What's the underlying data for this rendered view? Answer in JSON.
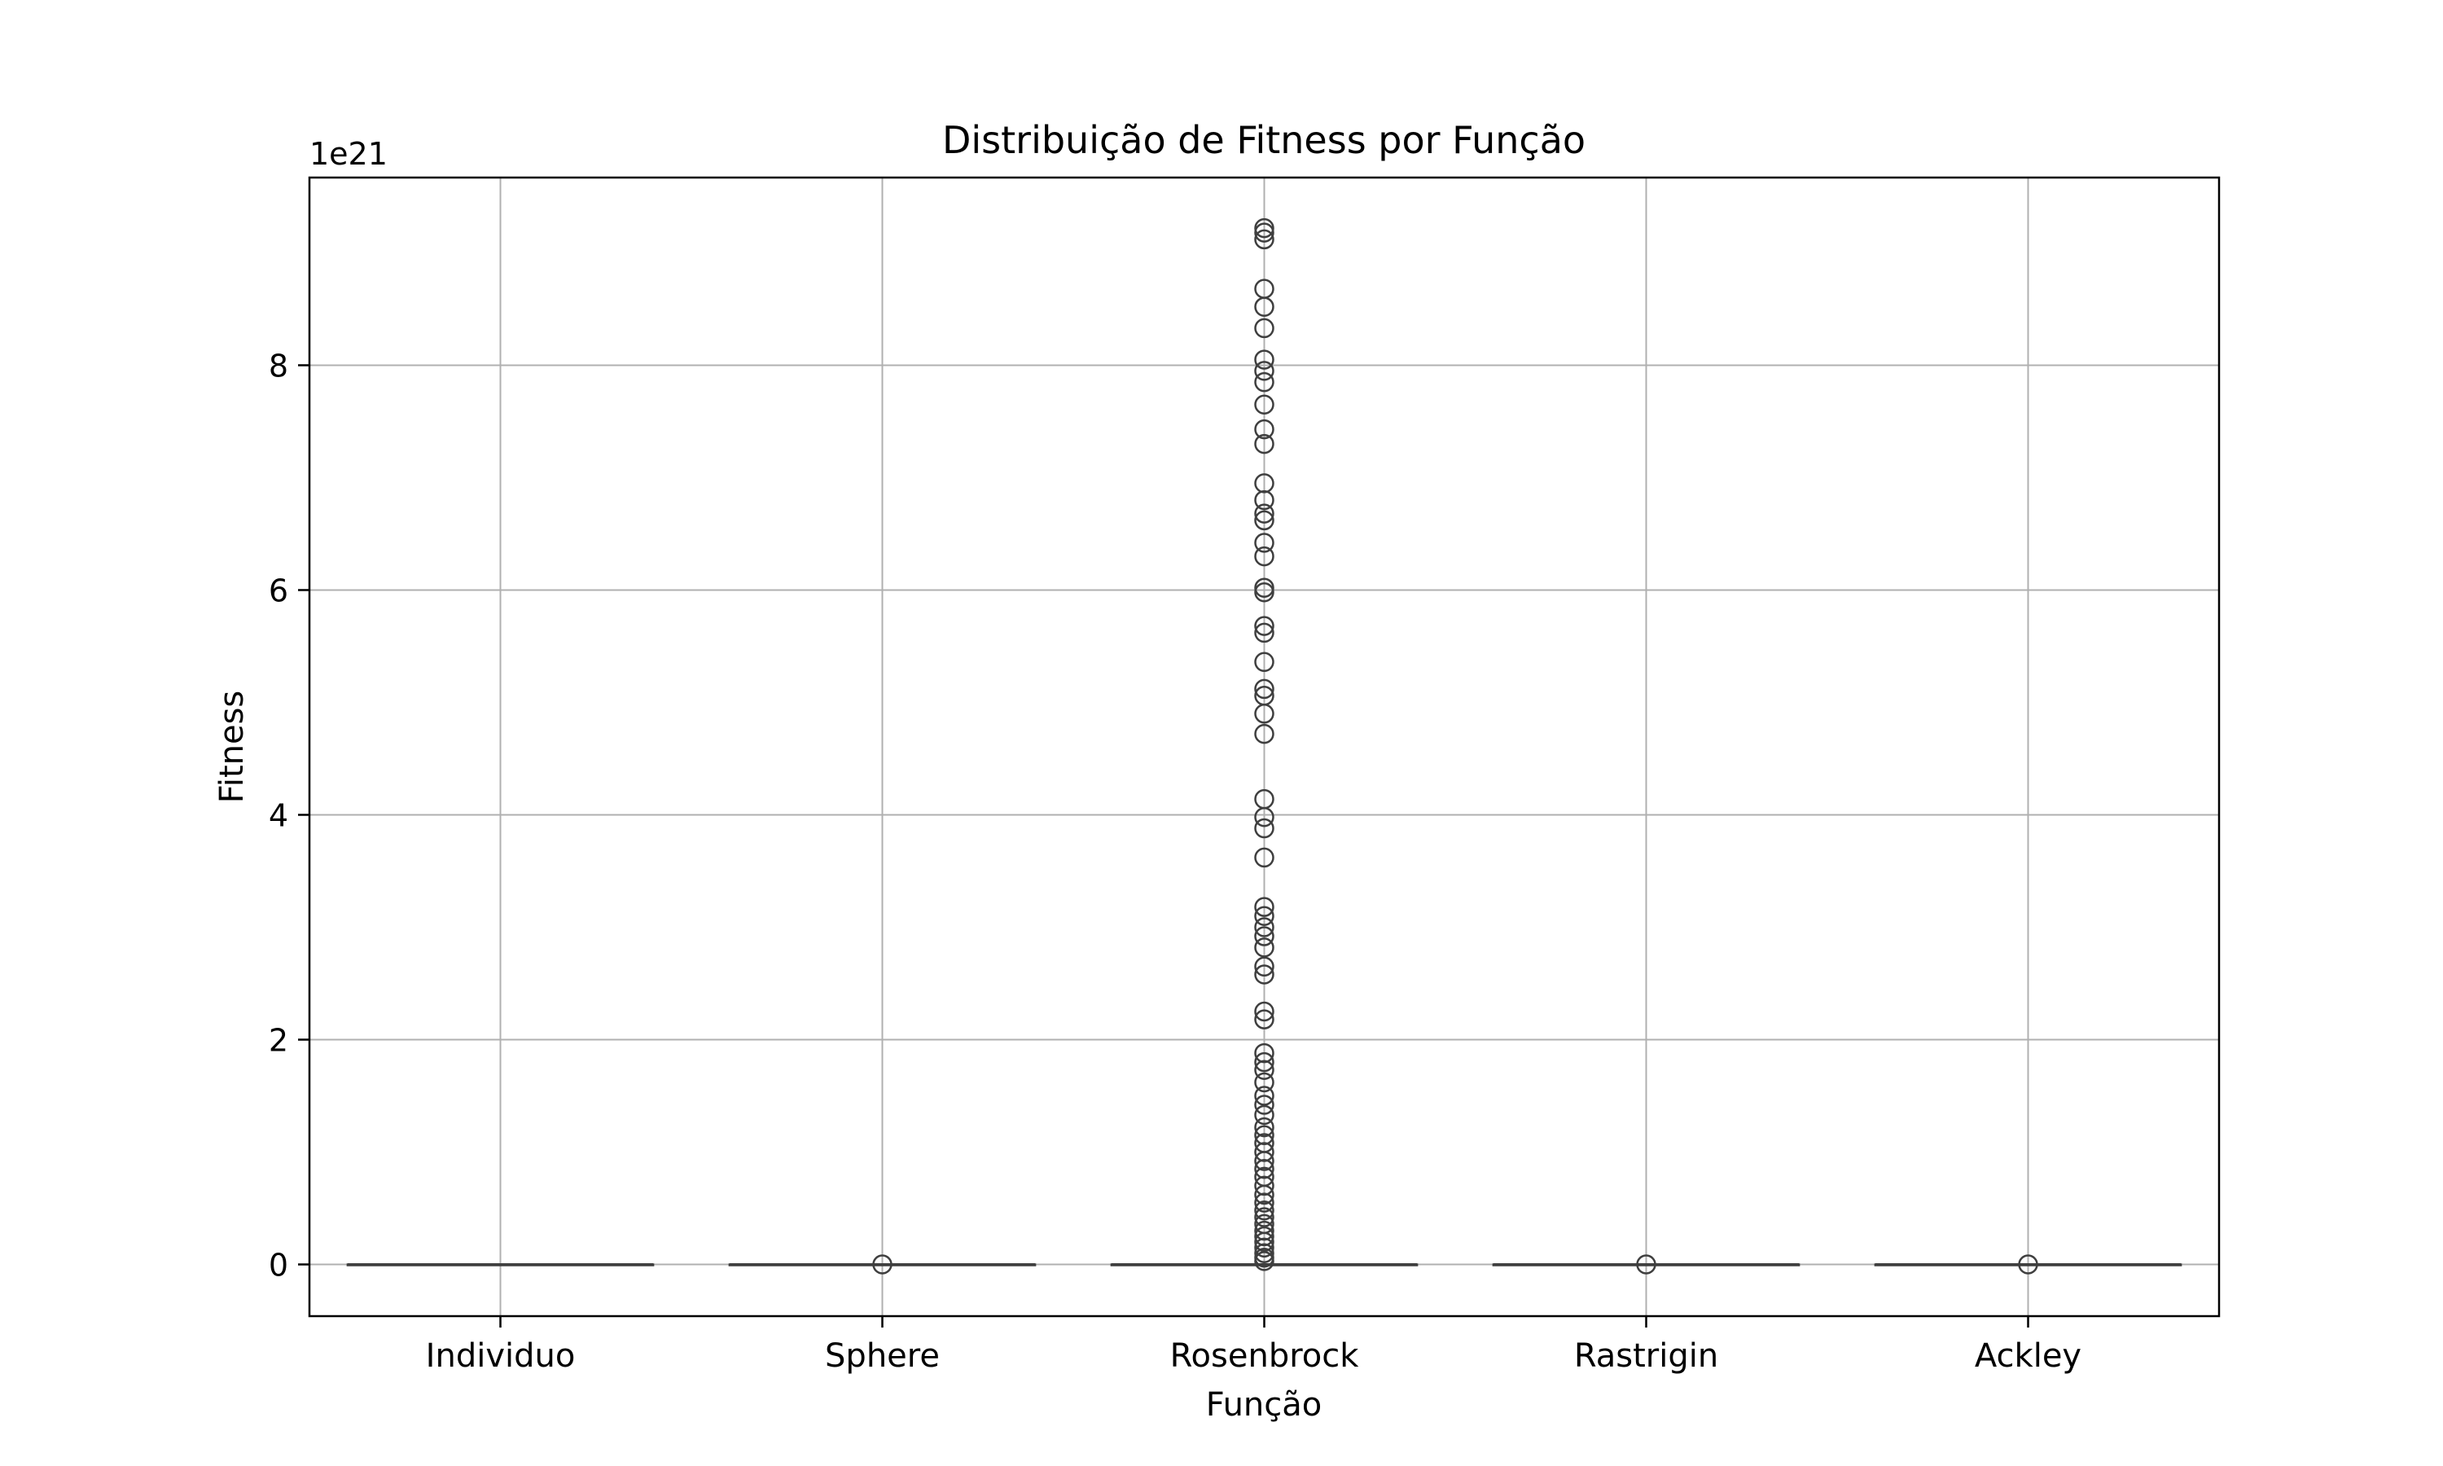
{
  "chart_data": {
    "type": "box",
    "title": "Distribuição de Fitness por Função",
    "xlabel": "Função",
    "ylabel": "Fitness",
    "y_offset_label": "1e21",
    "y_scale_factor": 1e+21,
    "ylim": [
      -0.46,
      9.67
    ],
    "y_ticks": [
      0,
      2,
      4,
      6,
      8
    ],
    "grid": true,
    "box_color": "#3f3f3f",
    "categories": [
      "Individuo",
      "Sphere",
      "Rosenbrock",
      "Rastrigin",
      "Ackley"
    ],
    "boxes": [
      {
        "category": "Individuo",
        "median": 0,
        "q1": 0,
        "q3": 0,
        "whisker_low": 0,
        "whisker_high": 0,
        "outliers": []
      },
      {
        "category": "Sphere",
        "median": 0,
        "q1": 0,
        "q3": 0,
        "whisker_low": 0,
        "whisker_high": 0,
        "outliers": [
          0
        ]
      },
      {
        "category": "Rosenbrock",
        "median": 0,
        "q1": 0,
        "q3": 0,
        "whisker_low": 0,
        "whisker_high": 0,
        "outliers": [
          9.22,
          9.18,
          9.12,
          8.68,
          8.52,
          8.33,
          8.05,
          7.95,
          7.85,
          7.65,
          7.43,
          7.3,
          6.95,
          6.8,
          6.68,
          6.62,
          6.42,
          6.3,
          6.02,
          5.98,
          5.68,
          5.62,
          5.36,
          5.12,
          5.06,
          4.9,
          4.72,
          4.14,
          3.98,
          3.88,
          3.62,
          3.18,
          3.1,
          3.0,
          2.92,
          2.82,
          2.65,
          2.58,
          2.25,
          2.18,
          1.88,
          1.8,
          1.73,
          1.62,
          1.5,
          1.42,
          1.33,
          1.22,
          1.15,
          1.08,
          1.0,
          0.92,
          0.85,
          0.78,
          0.7,
          0.62,
          0.55,
          0.48,
          0.42,
          0.36,
          0.3,
          0.25,
          0.2,
          0.15,
          0.1,
          0.06,
          0.03
        ]
      },
      {
        "category": "Rastrigin",
        "median": 0,
        "q1": 0,
        "q3": 0,
        "whisker_low": 0,
        "whisker_high": 0,
        "outliers": [
          0
        ]
      },
      {
        "category": "Ackley",
        "median": 0,
        "q1": 0,
        "q3": 0,
        "whisker_low": 0,
        "whisker_high": 0,
        "outliers": [
          0
        ]
      }
    ]
  }
}
